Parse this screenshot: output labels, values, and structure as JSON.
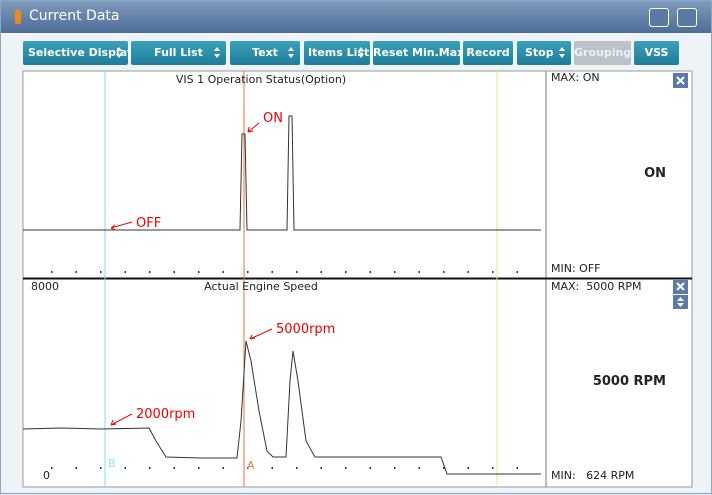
{
  "window": {
    "title": "Current Data"
  },
  "toolbar": {
    "buttons": [
      "Selective Display",
      "Full List",
      "Text",
      "Items List",
      "Reset Min.Max",
      "Record",
      "Stop",
      "Grouping",
      "VSS"
    ]
  },
  "panels": [
    {
      "title": "VIS 1 Operation Status(Option)",
      "max": "MAX: ON",
      "min": "MIN: OFF",
      "current": "ON",
      "annotations": [
        "ON",
        "OFF"
      ]
    },
    {
      "title": "Actual Engine Speed",
      "ymax": "8000",
      "ymin": "0",
      "max": "MAX:  5000 RPM",
      "min": "MIN:   624 RPM",
      "current": "5000 RPM",
      "annotations": [
        "5000rpm",
        "2000rpm"
      ],
      "cursors": [
        "B",
        "A"
      ]
    }
  ]
}
